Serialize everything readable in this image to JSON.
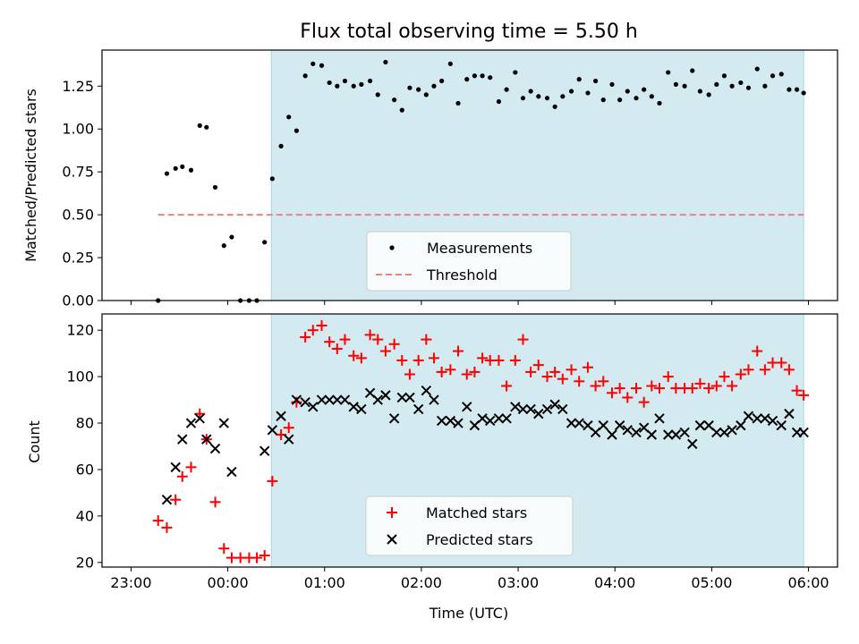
{
  "chart_data": {
    "type": "scatter",
    "title": "Flux total observing time = 5.50 h",
    "xlabel": "Time (UTC)",
    "x_unit": "hours since 23:00 UTC",
    "xlim": [
      -0.3,
      7.3
    ],
    "xtick_values": [
      0,
      1,
      2,
      3,
      4,
      5,
      6,
      7
    ],
    "xtick_labels": [
      "23:00",
      "00:00",
      "01:00",
      "02:00",
      "03:00",
      "04:00",
      "05:00",
      "06:00"
    ],
    "observing_window": [
      1.45,
      6.95
    ],
    "colors": {
      "shade": "#d4eaf1",
      "shade_edge": "#a9d6e0",
      "threshold": "#f08080",
      "measurement": "#000000",
      "matched": "#ff0000",
      "predicted": "#000000"
    },
    "top": {
      "ylabel": "Matched/Predicted stars",
      "ylim": [
        0,
        1.46
      ],
      "ytick_values": [
        0,
        0.25,
        0.5,
        0.75,
        1.0,
        1.25
      ],
      "ytick_labels": [
        "0.00",
        "0.25",
        "0.50",
        "0.75",
        "1.00",
        "1.25"
      ],
      "threshold": {
        "value": 0.5,
        "x_start": 0.28,
        "x_end": 6.95
      },
      "legend": {
        "position": "lower-center",
        "entries": [
          "Measurements",
          "Threshold"
        ]
      },
      "measurements": {
        "x": [
          0.28,
          0.37,
          0.46,
          0.53,
          0.62,
          0.71,
          0.78,
          0.87,
          0.96,
          1.04,
          1.13,
          1.22,
          1.3,
          1.38,
          1.46,
          1.55,
          1.63,
          1.71,
          1.8,
          1.88,
          1.97,
          2.05,
          2.13,
          2.21,
          2.3,
          2.38,
          2.47,
          2.55,
          2.63,
          2.72,
          2.8,
          2.88,
          2.97,
          3.05,
          3.13,
          3.21,
          3.3,
          3.38,
          3.47,
          3.55,
          3.63,
          3.71,
          3.8,
          3.88,
          3.97,
          4.05,
          4.13,
          4.21,
          4.3,
          4.38,
          4.46,
          4.55,
          4.63,
          4.72,
          4.8,
          4.88,
          4.97,
          5.05,
          5.13,
          5.22,
          5.3,
          5.38,
          5.46,
          5.55,
          5.63,
          5.72,
          5.8,
          5.88,
          5.97,
          6.05,
          6.13,
          6.21,
          6.3,
          6.38,
          6.47,
          6.55,
          6.63,
          6.72,
          6.8,
          6.88,
          6.95
        ],
        "y": [
          0.0,
          0.74,
          0.77,
          0.78,
          0.76,
          1.02,
          1.01,
          0.66,
          0.32,
          0.37,
          0.0,
          0.0,
          0.0,
          0.34,
          0.71,
          0.9,
          1.07,
          0.99,
          1.31,
          1.38,
          1.37,
          1.27,
          1.25,
          1.28,
          1.25,
          1.26,
          1.28,
          1.2,
          1.39,
          1.17,
          1.11,
          1.24,
          1.23,
          1.2,
          1.25,
          1.28,
          1.38,
          1.15,
          1.29,
          1.31,
          1.31,
          1.3,
          1.16,
          1.23,
          1.33,
          1.18,
          1.22,
          1.19,
          1.18,
          1.13,
          1.19,
          1.22,
          1.29,
          1.21,
          1.28,
          1.17,
          1.26,
          1.17,
          1.22,
          1.18,
          1.23,
          1.19,
          1.15,
          1.33,
          1.26,
          1.25,
          1.34,
          1.22,
          1.2,
          1.26,
          1.31,
          1.25,
          1.27,
          1.24,
          1.35,
          1.25,
          1.31,
          1.32,
          1.23,
          1.23,
          1.21
        ]
      }
    },
    "bottom": {
      "ylabel": "Count",
      "ylim": [
        18,
        127
      ],
      "ytick_values": [
        20,
        40,
        60,
        80,
        100,
        120
      ],
      "ytick_labels": [
        "20",
        "40",
        "60",
        "80",
        "100",
        "120"
      ],
      "legend": {
        "position": "lower-center",
        "entries": [
          "Matched stars",
          "Predicted stars"
        ]
      },
      "series": [
        {
          "name": "Matched stars",
          "marker": "+",
          "x": [
            0.28,
            0.37,
            0.46,
            0.53,
            0.62,
            0.71,
            0.78,
            0.87,
            0.96,
            1.04,
            1.13,
            1.22,
            1.3,
            1.38,
            1.46,
            1.55,
            1.63,
            1.71,
            1.8,
            1.88,
            1.97,
            2.05,
            2.13,
            2.21,
            2.3,
            2.38,
            2.47,
            2.55,
            2.63,
            2.72,
            2.8,
            2.88,
            2.97,
            3.05,
            3.13,
            3.21,
            3.3,
            3.38,
            3.47,
            3.55,
            3.63,
            3.71,
            3.8,
            3.88,
            3.97,
            4.05,
            4.13,
            4.21,
            4.3,
            4.38,
            4.46,
            4.55,
            4.63,
            4.72,
            4.8,
            4.88,
            4.97,
            5.05,
            5.13,
            5.22,
            5.3,
            5.38,
            5.46,
            5.55,
            5.63,
            5.72,
            5.8,
            5.88,
            5.97,
            6.05,
            6.13,
            6.21,
            6.3,
            6.38,
            6.47,
            6.55,
            6.63,
            6.72,
            6.8,
            6.88,
            6.95
          ],
          "y": [
            38,
            35,
            47,
            57,
            61,
            84,
            73,
            46,
            26,
            22,
            22,
            22,
            22,
            23,
            55,
            75,
            78,
            89,
            117,
            120,
            122,
            115,
            112,
            116,
            109,
            108,
            118,
            116,
            111,
            114,
            107,
            101,
            107,
            116,
            108,
            102,
            103,
            111,
            101,
            102,
            108,
            107,
            107,
            96,
            107,
            116,
            102,
            105,
            100,
            102,
            99,
            103,
            98,
            104,
            96,
            98,
            93,
            95,
            91,
            95,
            89,
            96,
            95,
            100,
            95,
            95,
            95,
            97,
            95,
            96,
            100,
            96,
            101,
            103,
            111,
            103,
            106,
            106,
            103,
            94,
            92
          ]
        },
        {
          "name": "Predicted stars",
          "marker": "x",
          "x": [
            0.37,
            0.46,
            0.53,
            0.62,
            0.71,
            0.78,
            0.87,
            0.96,
            1.04,
            1.38,
            1.46,
            1.55,
            1.63,
            1.71,
            1.8,
            1.88,
            1.97,
            2.05,
            2.13,
            2.21,
            2.3,
            2.38,
            2.47,
            2.55,
            2.63,
            2.72,
            2.8,
            2.88,
            2.97,
            3.05,
            3.13,
            3.21,
            3.3,
            3.38,
            3.47,
            3.55,
            3.63,
            3.71,
            3.8,
            3.88,
            3.97,
            4.05,
            4.13,
            4.21,
            4.3,
            4.38,
            4.46,
            4.55,
            4.63,
            4.72,
            4.8,
            4.88,
            4.97,
            5.05,
            5.13,
            5.22,
            5.3,
            5.38,
            5.46,
            5.55,
            5.63,
            5.72,
            5.8,
            5.88,
            5.97,
            6.05,
            6.13,
            6.21,
            6.3,
            6.38,
            6.47,
            6.55,
            6.63,
            6.72,
            6.8,
            6.88,
            6.95
          ],
          "y": [
            47,
            61,
            73,
            80,
            82,
            73,
            69,
            80,
            59,
            68,
            77,
            83,
            73,
            90,
            89,
            87,
            90,
            90,
            90,
            90,
            87,
            86,
            93,
            90,
            92,
            82,
            91,
            91,
            86,
            94,
            90,
            81,
            81,
            80,
            87,
            79,
            82,
            81,
            82,
            82,
            87,
            86,
            86,
            84,
            86,
            88,
            86,
            80,
            80,
            79,
            76,
            79,
            75,
            79,
            77,
            76,
            78,
            75,
            82,
            75,
            75,
            76,
            71,
            79,
            79,
            76,
            76,
            77,
            79,
            83,
            82,
            82,
            81,
            79,
            84,
            76,
            76
          ]
        }
      ]
    }
  }
}
